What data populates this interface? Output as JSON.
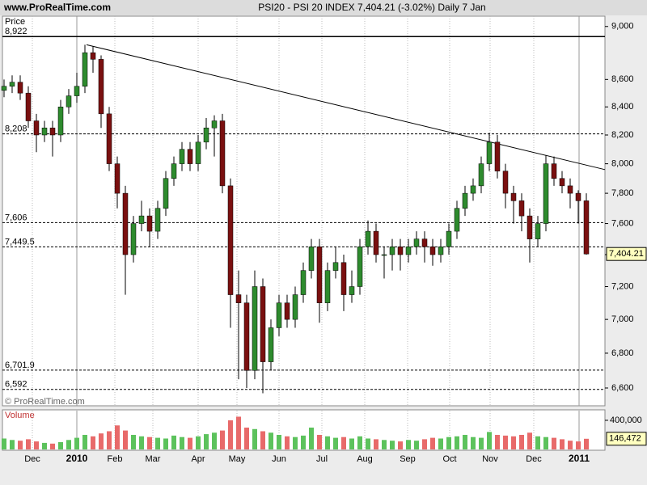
{
  "chart_data": {
    "type": "candlestick",
    "site": "www.ProRealTime.com",
    "title": "PSI20 - PSI 20 INDEX   7,404.21 (-3.02%)   Daily  7 Jan",
    "price_label": "Price",
    "volume_label": "Volume",
    "watermark": "© ProRealTime.com",
    "last_close_label": "7,404.21",
    "last_volume_label": "146,472",
    "log_scale": true,
    "up_color": "#2e8b2e",
    "down_color": "#7a1010",
    "volume_up_color": "#5cc25c",
    "volume_down_color": "#e86a6a",
    "ylim": [
      6500,
      9080
    ],
    "yticks": [
      {
        "value": 6600,
        "label": "6,600"
      },
      {
        "value": 6800,
        "label": "6,800"
      },
      {
        "value": 7000,
        "label": "7,000"
      },
      {
        "value": 7200,
        "label": "7,200"
      },
      {
        "value": 7400,
        "label": "7,400"
      },
      {
        "value": 7600,
        "label": "7,600"
      },
      {
        "value": 7800,
        "label": "7,800"
      },
      {
        "value": 8000,
        "label": "8,000"
      },
      {
        "value": 8200,
        "label": "8,200"
      },
      {
        "value": 8400,
        "label": "8,400"
      },
      {
        "value": 8600,
        "label": "8,600"
      },
      {
        "value": 9000,
        "label": "9,000"
      }
    ],
    "volume_lim": [
      0,
      533000
    ],
    "volume_ticks": [
      {
        "value": 400000,
        "label": "400,000"
      }
    ],
    "xticks": [
      {
        "value": 3.5,
        "label": "Dec"
      },
      {
        "value": 9,
        "label": "2010"
      },
      {
        "value": 13.7,
        "label": "Feb"
      },
      {
        "value": 18.4,
        "label": "Mar"
      },
      {
        "value": 24,
        "label": "Apr"
      },
      {
        "value": 28.8,
        "label": "May"
      },
      {
        "value": 34,
        "label": "Jun"
      },
      {
        "value": 39.3,
        "label": "Jul"
      },
      {
        "value": 44.6,
        "label": "Aug"
      },
      {
        "value": 49.9,
        "label": "Sep"
      },
      {
        "value": 55.1,
        "label": "Oct"
      },
      {
        "value": 60.1,
        "label": "Nov"
      },
      {
        "value": 65.5,
        "label": "Dec"
      },
      {
        "value": 71.1,
        "label": "2011"
      }
    ],
    "levels": [
      {
        "value": 8922,
        "label": "8,922",
        "style": "solid"
      },
      {
        "value": 8208,
        "label": "8,208",
        "style": "dashed"
      },
      {
        "value": 7606,
        "label": "7,606",
        "style": "dashed"
      },
      {
        "value": 7449.5,
        "label": "7,449.5",
        "style": "dashed"
      },
      {
        "value": 6701.9,
        "label": "6,701.9",
        "style": "dashed"
      },
      {
        "value": 6592,
        "label": "6,592",
        "style": "dashed"
      }
    ],
    "trendline": {
      "x": [
        10.2,
        74.3
      ],
      "y": [
        8860,
        7960
      ]
    },
    "open": [
      8520,
      8550,
      8580,
      8500,
      8300,
      8200,
      8250,
      8200,
      8400,
      8480,
      8550,
      8800,
      8750,
      8350,
      8000,
      7800,
      7400,
      7600,
      7650,
      7550,
      7700,
      7900,
      8000,
      8100,
      8000,
      8150,
      8250,
      8300,
      7850,
      7150,
      7100,
      6700,
      7200,
      6750,
      6950,
      7100,
      7000,
      7150,
      7300,
      7450,
      7100,
      7300,
      7350,
      7150,
      7200,
      7450,
      7550,
      7400,
      7400,
      7450,
      7400,
      7450,
      7500,
      7450,
      7400,
      7450,
      7550,
      7700,
      7800,
      7850,
      8000,
      8150,
      7950,
      7800,
      7750,
      7650,
      7500,
      7600,
      8000,
      7900,
      7850,
      7800,
      7750
    ],
    "high": [
      8600,
      8630,
      8630,
      8550,
      8350,
      8300,
      8300,
      8450,
      8530,
      8650,
      8860,
      8850,
      8780,
      8400,
      8050,
      7850,
      7650,
      7750,
      7700,
      7750,
      7950,
      8050,
      8150,
      8150,
      8200,
      8320,
      8340,
      8350,
      7900,
      7300,
      7150,
      7300,
      7250,
      7000,
      7150,
      7150,
      7200,
      7350,
      7500,
      7500,
      7350,
      7450,
      7400,
      7300,
      7500,
      7620,
      7600,
      7450,
      7500,
      7500,
      7500,
      7550,
      7550,
      7500,
      7500,
      7600,
      7750,
      7850,
      7900,
      8050,
      8215,
      8200,
      8000,
      7850,
      7800,
      7700,
      7650,
      8060,
      8050,
      7950,
      7900,
      7820,
      7800
    ],
    "low": [
      8470,
      8500,
      8450,
      8250,
      8080,
      8150,
      8050,
      8150,
      8350,
      8430,
      8500,
      8650,
      8250,
      7950,
      7700,
      7150,
      7350,
      7550,
      7450,
      7500,
      7650,
      7850,
      7950,
      7950,
      7950,
      8100,
      8050,
      7800,
      6950,
      6650,
      6600,
      6650,
      6570,
      6700,
      6900,
      6950,
      6950,
      7100,
      7250,
      6980,
      7050,
      7250,
      7050,
      7100,
      7150,
      7400,
      7350,
      7250,
      7300,
      7300,
      7350,
      7400,
      7350,
      7330,
      7350,
      7400,
      7500,
      7650,
      7750,
      7800,
      7950,
      7900,
      7700,
      7600,
      7550,
      7350,
      7450,
      7550,
      7850,
      7800,
      7700,
      7600,
      7400
    ],
    "close": [
      8550,
      8580,
      8500,
      8300,
      8200,
      8250,
      8200,
      8400,
      8480,
      8550,
      8800,
      8750,
      8350,
      8000,
      7800,
      7400,
      7600,
      7650,
      7550,
      7700,
      7900,
      8000,
      8100,
      8000,
      8150,
      8250,
      8300,
      7850,
      7150,
      7100,
      6700,
      7200,
      6750,
      6950,
      7100,
      7000,
      7150,
      7300,
      7450,
      7100,
      7300,
      7350,
      7150,
      7200,
      7450,
      7550,
      7400,
      7400,
      7450,
      7400,
      7450,
      7500,
      7450,
      7400,
      7450,
      7550,
      7700,
      7800,
      7850,
      8000,
      8150,
      7950,
      7800,
      7750,
      7650,
      7500,
      7600,
      8000,
      7900,
      7850,
      7800,
      7750,
      7404.21
    ],
    "volume": [
      150000,
      130000,
      120000,
      140000,
      110000,
      90000,
      80000,
      100000,
      130000,
      160000,
      200000,
      180000,
      220000,
      250000,
      330000,
      260000,
      200000,
      180000,
      170000,
      160000,
      150000,
      190000,
      170000,
      160000,
      180000,
      210000,
      230000,
      260000,
      400000,
      450000,
      300000,
      280000,
      250000,
      230000,
      200000,
      180000,
      170000,
      190000,
      300000,
      200000,
      180000,
      160000,
      170000,
      150000,
      180000,
      150000,
      140000,
      130000,
      120000,
      110000,
      130000,
      120000,
      140000,
      160000,
      150000,
      170000,
      180000,
      200000,
      170000,
      160000,
      240000,
      200000,
      190000,
      180000,
      200000,
      230000,
      180000,
      170000,
      160000,
      140000,
      120000,
      110000,
      146472
    ]
  }
}
